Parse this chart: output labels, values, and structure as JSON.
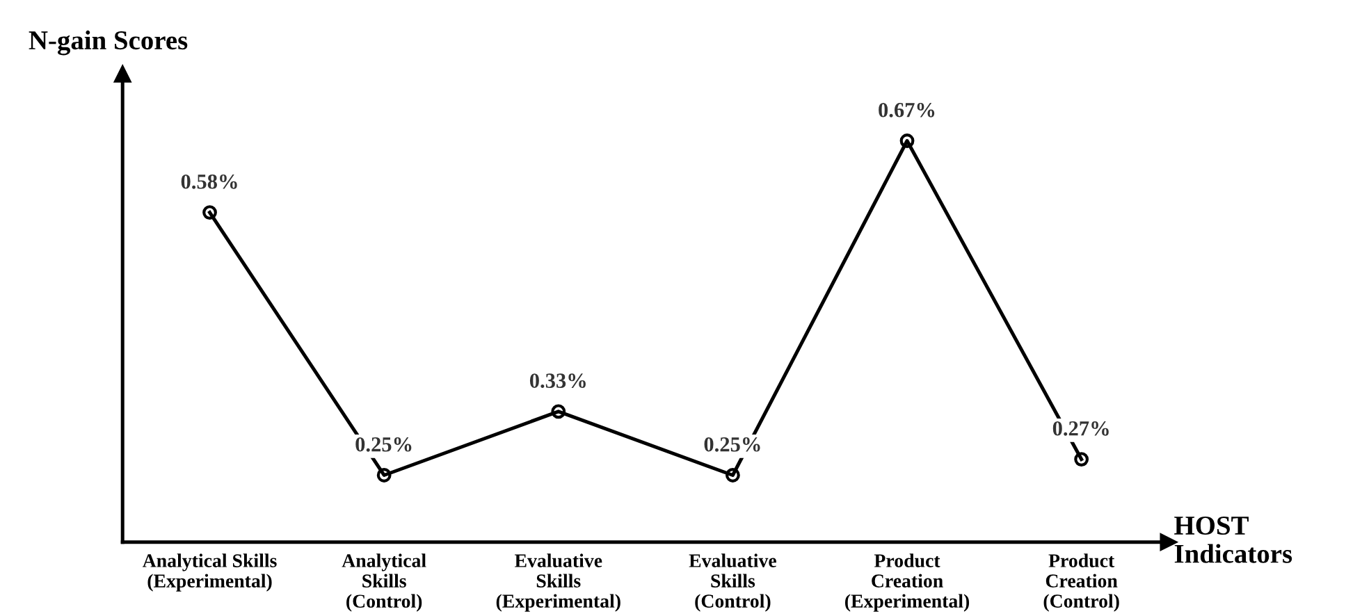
{
  "chart_data": {
    "type": "line",
    "xlabel": "HOST\nIndicators",
    "ylabel": "N-gain Scores",
    "categories": [
      "Analytical Skills\n(Experimental)",
      "Analytical\nSkills\n(Control)",
      "Evaluative\nSkills\n(Experimental)",
      "Evaluative\nSkills\n(Control)",
      "Product\nCreation\n(Experimental)",
      "Product\nCreation\n(Control)"
    ],
    "series": [
      {
        "color": "#000000",
        "values": [
          0.58,
          0.25,
          0.33,
          0.25,
          0.67,
          0.27
        ],
        "value_labels": [
          "0.58%",
          "0.25%",
          "0.33%",
          "0.25%",
          "0.67%",
          "0.27%"
        ]
      }
    ],
    "marker": "circle",
    "line_style": "solid",
    "grid": false,
    "legend": false
  }
}
